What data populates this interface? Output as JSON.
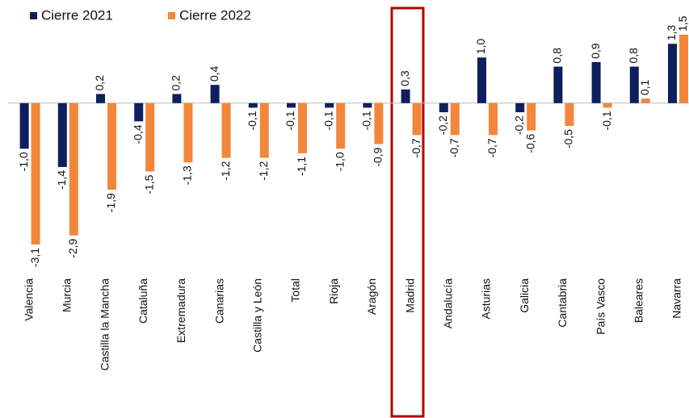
{
  "chart_data": {
    "type": "bar",
    "categories": [
      "Valencia",
      "Murcia",
      "Castilla la Mancha",
      "Cataluña",
      "Extremadura",
      "Canarias",
      "Castilla y León",
      "Total",
      "Rioja",
      "Aragón",
      "Madrid",
      "Andalucía",
      "Asturias",
      "Galicia",
      "Cantabria",
      "País Vasco",
      "Baleares",
      "Navarra"
    ],
    "series": [
      {
        "name": "Cierre 2021",
        "color": "#0d1f5c",
        "values": [
          -1.0,
          -1.4,
          0.2,
          -0.4,
          0.2,
          0.4,
          -0.1,
          -0.1,
          -0.1,
          -0.1,
          0.3,
          -0.2,
          1.0,
          -0.2,
          0.8,
          0.9,
          0.8,
          1.3
        ],
        "value_labels": [
          "-1,0",
          "-1,4",
          "0,2",
          "-0,4",
          "0,2",
          "0,4",
          "-0,1",
          "-0,1",
          "-0,1",
          "-0,1",
          "0,3",
          "-0,2",
          "1,0",
          "-0,2",
          "0,8",
          "0,9",
          "0,8",
          "1,3"
        ]
      },
      {
        "name": "Cierre 2022",
        "color": "#f2873b",
        "values": [
          -3.1,
          -2.9,
          -1.9,
          -1.5,
          -1.3,
          -1.2,
          -1.2,
          -1.1,
          -1.0,
          -0.9,
          -0.7,
          -0.7,
          -0.7,
          -0.6,
          -0.5,
          -0.1,
          0.1,
          1.5
        ],
        "value_labels": [
          "-3,1",
          "-2,9",
          "-1,9",
          "-1,5",
          "-1,3",
          "-1,2",
          "-1,2",
          "-1,1",
          "-1,0",
          "-0,9",
          "-0,7",
          "-0,7",
          "-0,7",
          "-0,6",
          "-0,5",
          "-0,1",
          "0,1",
          "1,5"
        ]
      }
    ],
    "legend": "top-left"
  }
}
